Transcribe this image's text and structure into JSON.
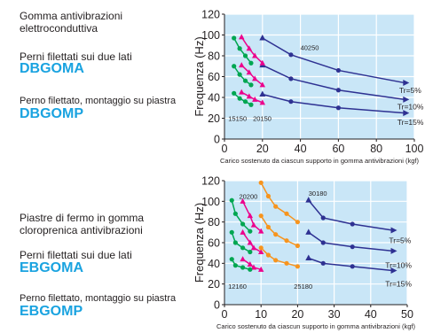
{
  "panels": [
    {
      "text": {
        "heading": "Gomma antivibrazioni\nelettroconduttiva",
        "option1": "Perni filettati sui due lati",
        "code1": "DBGOMA",
        "option2": "Perno filettato, montaggio su piastra",
        "code2": "DBGOMP"
      }
    },
    {
      "text": {
        "heading": "Piastre di fermo in gomma\ncloroprenica antivibrazioni",
        "option1": "Perni filettati sui due lati",
        "code1": "EBGOMA",
        "option2": "Perno filettato, montaggio su piastra",
        "code2": "EBGOMP"
      }
    }
  ],
  "colors": {
    "plot_bg": "#c9e6f7",
    "grid": "#ffffff",
    "navy": "#2e3192",
    "magenta": "#ec008c",
    "green": "#00a651",
    "orange": "#f7941d",
    "code_text": "#1aa3e0"
  },
  "chart_data": [
    {
      "type": "line",
      "xlabel": "Carico sostenuto da ciascun supporto in gomma antivibrazioni (kgf)",
      "ylabel": "Frequenza (Hz)",
      "xlim": [
        0,
        100
      ],
      "ylim": [
        0,
        120
      ],
      "xticks": [
        0,
        20,
        40,
        60,
        80,
        100
      ],
      "yticks": [
        0,
        20,
        40,
        60,
        80,
        100,
        120
      ],
      "grid": true,
      "annotations": [
        {
          "text": "40250",
          "x": 40,
          "y": 88
        },
        {
          "text": "15150",
          "x": 2,
          "y": 20
        },
        {
          "text": "20150",
          "x": 15,
          "y": 20
        },
        {
          "text": "Tr=5%",
          "x": 92,
          "y": 47
        },
        {
          "text": "Tr=10%",
          "x": 91,
          "y": 31
        },
        {
          "text": "Tr=15%",
          "x": 91,
          "y": 16
        }
      ],
      "series": [
        {
          "color": "navy",
          "x": [
            20,
            35,
            60,
            95
          ],
          "y": [
            97,
            81,
            66,
            54
          ]
        },
        {
          "color": "navy",
          "x": [
            20,
            35,
            60,
            95
          ],
          "y": [
            71,
            58,
            47,
            38
          ]
        },
        {
          "color": "navy",
          "x": [
            20,
            35,
            60,
            95
          ],
          "y": [
            43,
            36,
            30,
            25
          ]
        },
        {
          "color": "magenta",
          "x": [
            9,
            13,
            16,
            20
          ],
          "y": [
            98,
            87,
            80,
            73
          ]
        },
        {
          "color": "magenta",
          "x": [
            9,
            13,
            16,
            20
          ],
          "y": [
            71,
            64,
            58,
            52
          ]
        },
        {
          "color": "magenta",
          "x": [
            9,
            13,
            16,
            20
          ],
          "y": [
            45,
            41,
            38,
            35
          ]
        },
        {
          "color": "green",
          "x": [
            5,
            8,
            11,
            14
          ],
          "y": [
            97,
            87,
            80,
            73
          ]
        },
        {
          "color": "green",
          "x": [
            5,
            8,
            11,
            14
          ],
          "y": [
            70,
            62,
            56,
            52
          ]
        },
        {
          "color": "green",
          "x": [
            5,
            8,
            11,
            14
          ],
          "y": [
            44,
            39,
            36,
            33
          ]
        }
      ]
    },
    {
      "type": "line",
      "xlabel": "Carico sostenuto da ciascun supporto in gomma antivibrazioni (kgf)",
      "ylabel": "Frequenza (Hz)",
      "xlim": [
        0,
        50
      ],
      "ylim": [
        0,
        120
      ],
      "xticks": [
        0,
        10,
        20,
        30,
        40,
        50
      ],
      "yticks": [
        0,
        20,
        40,
        60,
        80,
        100,
        120
      ],
      "grid": true,
      "annotations": [
        {
          "text": "20200",
          "x": 4,
          "y": 105
        },
        {
          "text": "30180",
          "x": 23,
          "y": 108
        },
        {
          "text": "12160",
          "x": 1,
          "y": 18
        },
        {
          "text": "25180",
          "x": 19,
          "y": 18
        },
        {
          "text": "Tr=5%",
          "x": 45,
          "y": 62
        },
        {
          "text": "Tr=10%",
          "x": 44,
          "y": 38
        },
        {
          "text": "Tr=15%",
          "x": 44,
          "y": 20
        }
      ],
      "series": [
        {
          "color": "navy",
          "x": [
            23,
            27,
            35,
            46
          ],
          "y": [
            101,
            84,
            78,
            72
          ]
        },
        {
          "color": "navy",
          "x": [
            23,
            27,
            35,
            46
          ],
          "y": [
            70,
            60,
            56,
            52
          ]
        },
        {
          "color": "navy",
          "x": [
            23,
            27,
            35,
            46
          ],
          "y": [
            45,
            40,
            37,
            33
          ]
        },
        {
          "color": "magenta",
          "x": [
            5,
            7,
            8,
            10
          ],
          "y": [
            100,
            86,
            77,
            71
          ]
        },
        {
          "color": "magenta",
          "x": [
            5,
            7,
            8,
            10
          ],
          "y": [
            70,
            60,
            55,
            51
          ]
        },
        {
          "color": "magenta",
          "x": [
            5,
            7,
            8,
            10
          ],
          "y": [
            44,
            39,
            36,
            34
          ]
        },
        {
          "color": "green",
          "x": [
            2,
            3,
            5,
            7
          ],
          "y": [
            101,
            88,
            78,
            71
          ]
        },
        {
          "color": "green",
          "x": [
            2,
            3,
            5,
            7
          ],
          "y": [
            70,
            60,
            55,
            51
          ]
        },
        {
          "color": "green",
          "x": [
            2,
            3,
            5,
            7
          ],
          "y": [
            44,
            38,
            36,
            34
          ]
        },
        {
          "color": "orange",
          "x": [
            10,
            12,
            14,
            17,
            20
          ],
          "y": [
            118,
            105,
            95,
            88,
            80
          ]
        },
        {
          "color": "orange",
          "x": [
            10,
            12,
            14,
            17,
            20
          ],
          "y": [
            86,
            75,
            68,
            62,
            57
          ]
        },
        {
          "color": "orange",
          "x": [
            10,
            12,
            14,
            17,
            20
          ],
          "y": [
            55,
            48,
            43,
            40,
            37
          ]
        }
      ]
    }
  ]
}
